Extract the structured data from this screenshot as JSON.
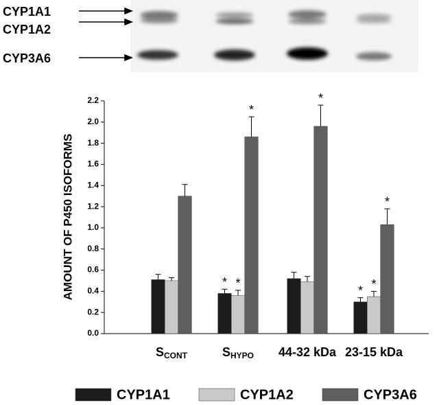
{
  "blot_labels": [
    "CYP1A1",
    "CYP1A2",
    "CYP3A6"
  ],
  "chart_data": {
    "type": "bar",
    "y_label": "AMOUNT OF P450 ISOFORMS",
    "categories": [
      {
        "text": "S",
        "subscript": "CONT"
      },
      {
        "text": "S",
        "subscript": "HYPO"
      },
      "44-32 kDa",
      "23-15 kDa"
    ],
    "series": [
      {
        "name": "CYP1A1",
        "color": "#1c1c1c",
        "values": [
          0.51,
          0.38,
          0.52,
          0.3
        ],
        "errors": [
          0.05,
          0.04,
          0.06,
          0.04
        ],
        "significance": [
          null,
          "*",
          null,
          "*"
        ]
      },
      {
        "name": "CYP1A2",
        "color": "#c9c9c9",
        "values": [
          0.5,
          0.36,
          0.49,
          0.35
        ],
        "errors": [
          0.03,
          0.05,
          0.05,
          0.05
        ],
        "significance": [
          null,
          "*",
          null,
          "*"
        ]
      },
      {
        "name": "CYP3A6",
        "color": "#5f5f5f",
        "values": [
          1.3,
          1.86,
          1.96,
          1.03
        ],
        "errors": [
          0.11,
          0.19,
          0.2,
          0.15
        ],
        "significance": [
          null,
          "*",
          "*",
          "*"
        ]
      }
    ],
    "ylim": [
      0,
      2.2
    ],
    "yticks": [
      {
        "value": 0,
        "label": "0.0"
      },
      0.2,
      0.4,
      0.6,
      0.8,
      {
        "value": 1,
        "label": "1.0"
      },
      1.2,
      1.4,
      1.6,
      1.8,
      {
        "value": 2,
        "label": "2.0"
      },
      2.2
    ]
  }
}
